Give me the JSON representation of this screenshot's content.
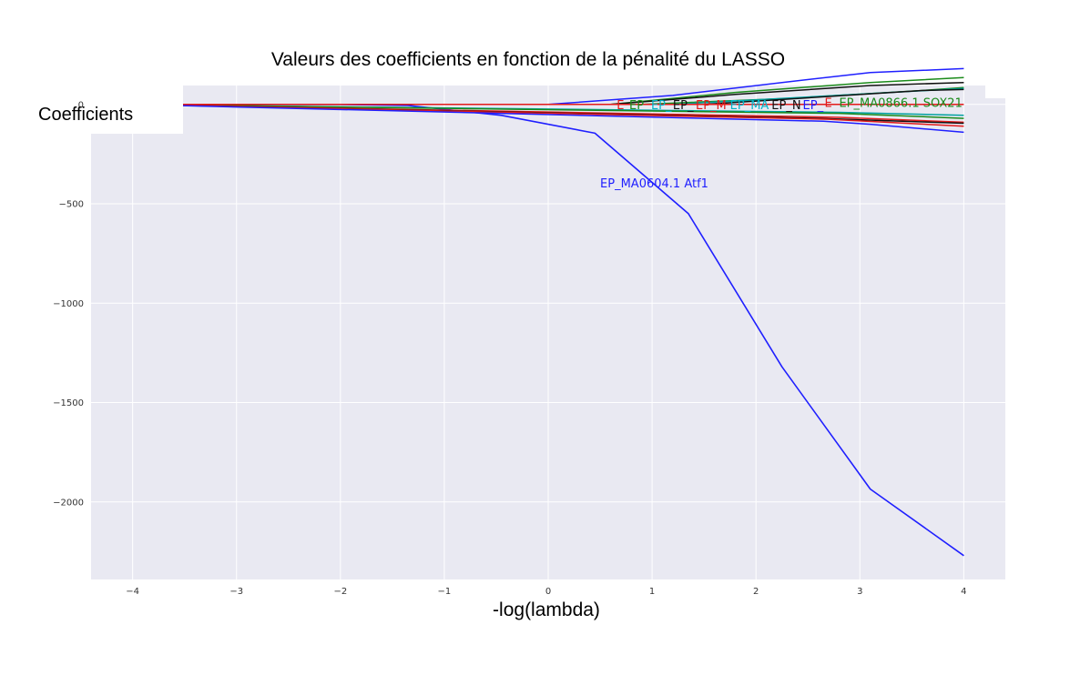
{
  "chart_data": {
    "type": "line",
    "title": "Valeurs des coefficients en fonction de la pénalité du LASSO",
    "xlabel": "-log(lambda)",
    "ylabel": "Coefficients",
    "xlim": [
      -4.4,
      4.4
    ],
    "ylim": [
      -2390,
      95
    ],
    "grid": true,
    "x_ticks": [
      -4,
      -3,
      -2,
      -1,
      0,
      1,
      2,
      3,
      4
    ],
    "x_tick_labels": [
      "−4",
      "−3",
      "−2",
      "−1",
      "0",
      "1",
      "2",
      "3",
      "4"
    ],
    "y_ticks": [
      0,
      -500,
      -1000,
      -1500,
      -2000
    ],
    "y_tick_labels": [
      "0",
      "−500",
      "−1000",
      "−1500",
      "−2000"
    ],
    "background_color": "#e9e9f2",
    "series": [
      {
        "name": "EP_MA0604.1 Atf1",
        "color": "#1f1fff",
        "x": [
          -4,
          -2,
          -1.35,
          -0.45,
          0.45,
          1.35,
          2.25,
          3.1,
          4
        ],
        "y": [
          0,
          0,
          -5,
          -55,
          -145,
          -550,
          -1320,
          -1935,
          -2270
        ]
      },
      {
        "color": "#1f1fff",
        "x": [
          -4,
          0,
          1.2,
          2.25,
          3.1,
          4
        ],
        "y": [
          0,
          0,
          45,
          110,
          160,
          180
        ]
      },
      {
        "color": "#1a8a1a",
        "x": [
          -4,
          0.6,
          1.8,
          3.1,
          4
        ],
        "y": [
          0,
          0,
          60,
          110,
          135
        ]
      },
      {
        "color": "#111111",
        "x": [
          -4,
          0.6,
          1.8,
          3.1,
          4
        ],
        "y": [
          0,
          0,
          50,
          95,
          110
        ]
      },
      {
        "color": "#1a8a1a",
        "x": [
          -4,
          0.9,
          2.3,
          3.6,
          4
        ],
        "y": [
          0,
          0,
          30,
          70,
          85
        ]
      },
      {
        "color": "#00a0a0",
        "x": [
          -4,
          1.2,
          2.6,
          4
        ],
        "y": [
          0,
          0,
          40,
          80
        ]
      },
      {
        "color": "#111111",
        "x": [
          -4,
          1.5,
          3.6,
          4
        ],
        "y": [
          0,
          0,
          70,
          75
        ]
      },
      {
        "color": "#00a0a0",
        "x": [
          -4,
          2.8,
          4
        ],
        "y": [
          0,
          -40,
          -55
        ]
      },
      {
        "color": "#1a8a1a",
        "x": [
          -4,
          2.8,
          4
        ],
        "y": [
          0,
          -45,
          -70
        ]
      },
      {
        "color": "#e31a1a",
        "x": [
          -4,
          2.8,
          4
        ],
        "y": [
          0,
          -65,
          -90
        ]
      },
      {
        "color": "#111111",
        "x": [
          -4,
          2.6,
          4
        ],
        "y": [
          0,
          -70,
          -95
        ]
      },
      {
        "color": "#e31a1a",
        "x": [
          -4,
          2.7,
          4
        ],
        "y": [
          0,
          -75,
          -110
        ]
      },
      {
        "color": "#1f1fff",
        "x": [
          -4,
          2.65,
          3.1,
          4
        ],
        "y": [
          0,
          -85,
          -100,
          -140
        ]
      },
      {
        "color": "#e31a1a",
        "x": [
          -4,
          0,
          4
        ],
        "y": [
          0,
          0,
          0
        ]
      }
    ],
    "annotations": [
      {
        "text": "EP_MA0604.1 Atf1",
        "color": "#1f1fff",
        "x": 0.5,
        "y": -400
      },
      {
        "text": "E",
        "color": "#e31a1a",
        "x": 0.66,
        "y": -5
      },
      {
        "text": "EP",
        "color": "#1a8a1a",
        "x": 0.78,
        "y": -5
      },
      {
        "text": "EP_",
        "color": "#00b4c8",
        "x": 0.99,
        "y": -5
      },
      {
        "text": "EP_",
        "color": "#111111",
        "x": 1.2,
        "y": -5
      },
      {
        "text": "EP_M",
        "color": "#e31a1a",
        "x": 1.42,
        "y": -5
      },
      {
        "text": "EP_MA",
        "color": "#00b4c8",
        "x": 1.75,
        "y": -5
      },
      {
        "text": "EP_N",
        "color": "#111111",
        "x": 2.15,
        "y": -5
      },
      {
        "text": "EP_",
        "color": "#1f1fff",
        "x": 2.45,
        "y": -5
      },
      {
        "text": "E",
        "color": "#e31a1a",
        "x": 2.66,
        "y": 5
      },
      {
        "text": "EP_MA0866.1 SOX21",
        "color": "#1a8a1a",
        "x": 2.8,
        "y": 5
      }
    ]
  }
}
